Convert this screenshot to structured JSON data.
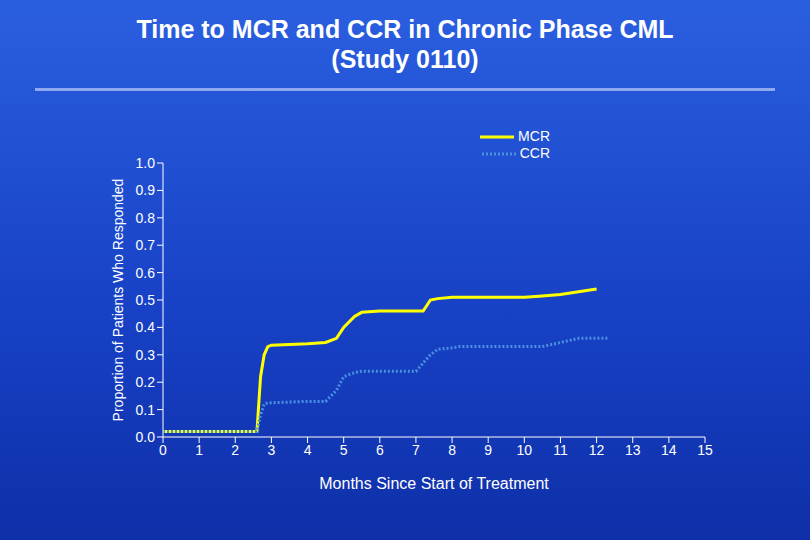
{
  "chart_data": {
    "type": "line",
    "title": "Time to MCR and CCR in Chronic Phase CML (Study 0110)",
    "x_label": "Months Since Start of Treatment",
    "y_label": "Proportion of Patients Who Responded",
    "x": [
      0,
      1,
      2,
      2.6,
      2.7,
      2.8,
      2.9,
      3,
      4,
      4.5,
      4.8,
      5,
      5.3,
      5.5,
      6,
      7,
      7.2,
      7.4,
      7.6,
      8,
      8.2,
      9,
      10,
      10.5,
      11,
      11.5,
      12,
      12.3
    ],
    "series": [
      {
        "name": "MCR",
        "color": "#ffff00",
        "line_style": "solid",
        "values": [
          0.02,
          0.02,
          0.02,
          0.02,
          0.22,
          0.3,
          0.33,
          0.335,
          0.34,
          0.345,
          0.36,
          0.4,
          0.44,
          0.455,
          0.46,
          0.46,
          0.46,
          0.5,
          0.505,
          0.51,
          0.51,
          0.51,
          0.51,
          0.515,
          0.52,
          0.53,
          0.54,
          null
        ]
      },
      {
        "name": "CCR",
        "color": "#4a90e2",
        "line_style": "dotted",
        "values": [
          0.02,
          0.02,
          0.02,
          0.02,
          0.08,
          0.12,
          0.125,
          0.125,
          0.13,
          0.13,
          0.17,
          0.22,
          0.235,
          0.24,
          0.24,
          0.24,
          0.27,
          0.3,
          0.32,
          0.325,
          0.33,
          0.33,
          0.33,
          0.33,
          0.345,
          0.36,
          0.36,
          0.36
        ]
      }
    ],
    "xlim": [
      0,
      15
    ],
    "xticks": [
      0,
      1,
      2,
      3,
      4,
      5,
      6,
      7,
      8,
      9,
      10,
      11,
      12,
      13,
      14,
      15
    ],
    "ylim": [
      0,
      1
    ],
    "yticks": [
      {
        "value": 0,
        "label": "0.0"
      },
      0.1,
      0.2,
      0.3,
      0.4,
      0.5,
      0.6,
      0.7,
      0.8,
      0.9,
      {
        "value": 1,
        "label": "1.0"
      }
    ],
    "grid": false,
    "legend": "upper right"
  }
}
